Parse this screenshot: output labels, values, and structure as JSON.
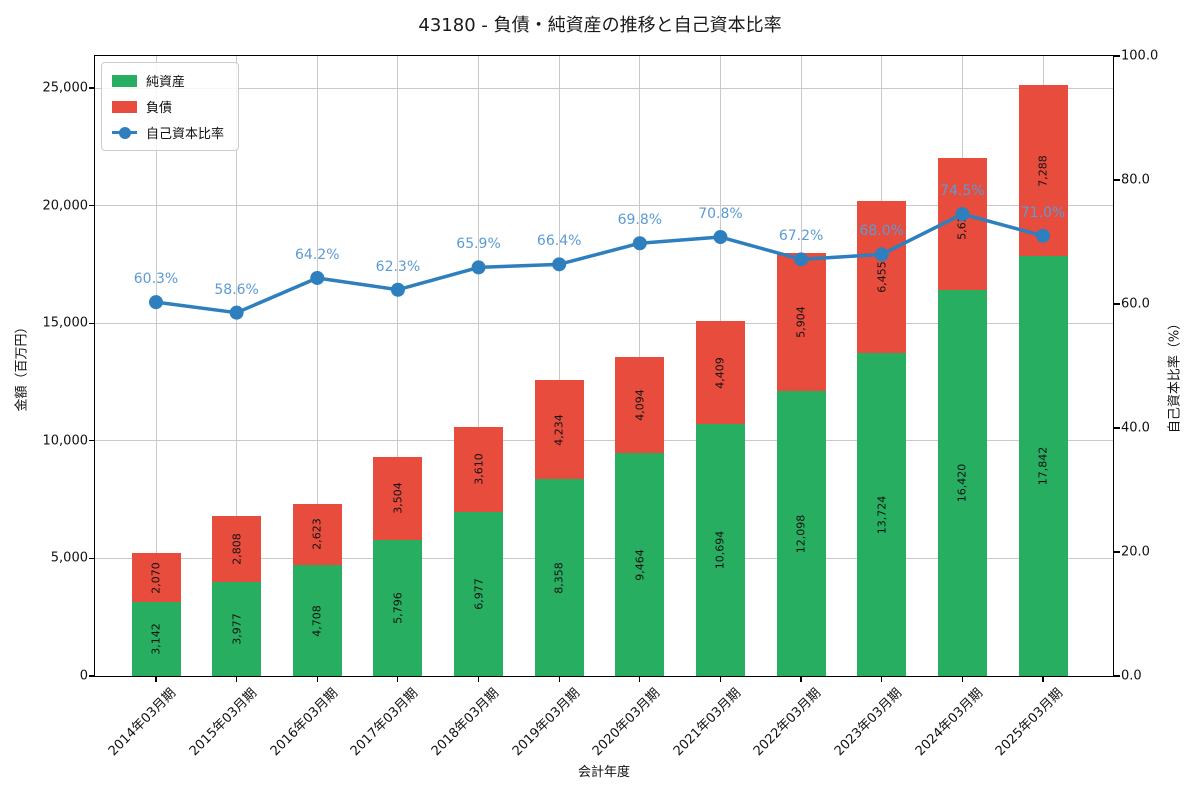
{
  "chart_data": {
    "type": "bar",
    "variant": "stacked-bars-with-line-overlay",
    "title": "43180 - 負債・純資産の推移と自己資本比率",
    "xlabel": "会計年度",
    "ylabel_left": "金額（百万円）",
    "ylabel_right": "自己資本比率（%）",
    "categories": [
      "2014年03月期",
      "2015年03月期",
      "2016年03月期",
      "2017年03月期",
      "2018年03月期",
      "2019年03月期",
      "2020年03月期",
      "2021年03月期",
      "2022年03月期",
      "2023年03月期",
      "2024年03月期",
      "2025年03月期"
    ],
    "series": [
      {
        "name": "純資産",
        "type": "bar",
        "stack_order": 0,
        "color": "#27ae60",
        "values": [
          3142,
          3977,
          4708,
          5796,
          6977,
          8358,
          9464,
          10694,
          12098,
          13724,
          16420,
          17842
        ],
        "labels": [
          "3,142",
          "3,977",
          "4,708",
          "5,796",
          "6,977",
          "8,358",
          "9,464",
          "10,694",
          "12,098",
          "13,724",
          "16,420",
          "17,842"
        ]
      },
      {
        "name": "負債",
        "type": "bar",
        "stack_order": 1,
        "color": "#e74c3c",
        "values": [
          2070,
          2808,
          2623,
          3504,
          3610,
          4234,
          4094,
          4409,
          5904,
          6455,
          5620,
          7288
        ],
        "labels": [
          "2,070",
          "2,808",
          "2,623",
          "3,504",
          "3,610",
          "4,234",
          "4,094",
          "4,409",
          "5,904",
          "6,455",
          "5,620",
          "7,288"
        ]
      },
      {
        "name": "自己資本比率",
        "type": "line",
        "axis": "right",
        "color": "#2e7fbe",
        "label_color": "#5b9bd5",
        "values": [
          60.3,
          58.6,
          64.2,
          62.3,
          65.9,
          66.4,
          69.8,
          70.8,
          67.2,
          68.0,
          74.5,
          71.0
        ],
        "labels": [
          "60.3%",
          "58.6%",
          "64.2%",
          "62.3%",
          "65.9%",
          "66.4%",
          "69.8%",
          "70.8%",
          "67.2%",
          "68.0%",
          "74.5%",
          "71.0%"
        ]
      }
    ],
    "left_axis": {
      "tick_labels": [
        "0",
        "5,000",
        "10,000",
        "15,000",
        "20,000",
        "25,000"
      ],
      "tick_values": [
        0,
        5000,
        10000,
        15000,
        20000,
        25000
      ]
    },
    "right_axis": {
      "tick_labels": [
        "0.0",
        "20.0",
        "40.0",
        "60.0",
        "80.0",
        "100.0"
      ],
      "tick_values": [
        0,
        20,
        40,
        60,
        80,
        100
      ]
    },
    "ylim_left": [
      0,
      26360
    ],
    "ylim_right": [
      0,
      100
    ],
    "grid": true,
    "grid_color": "#c9c9c9",
    "legend_position": "upper-left"
  }
}
